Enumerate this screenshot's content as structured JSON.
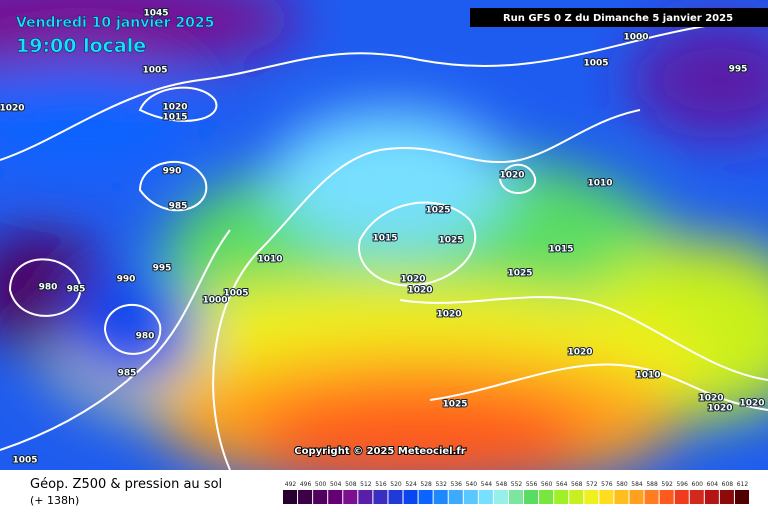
{
  "header": {
    "date": "Vendredi 10 janvier 2025",
    "time": "19:00 locale",
    "run": "Run GFS 0 Z du Dimanche 5 janvier 2025"
  },
  "copyright": "Copyright © 2025 Meteociel.fr",
  "footer": {
    "title": "Géop. Z500 & pression au sol",
    "lead": "(+ 138h)"
  },
  "legend": {
    "values": [
      492,
      496,
      500,
      504,
      508,
      512,
      516,
      520,
      524,
      528,
      532,
      536,
      540,
      544,
      548,
      552,
      556,
      560,
      564,
      568,
      572,
      576,
      580,
      584,
      588,
      592,
      596,
      600,
      604,
      608,
      612
    ],
    "colors": [
      "#28002f",
      "#3c0046",
      "#50005d",
      "#640074",
      "#7a1090",
      "#5a1fa8",
      "#3a2ec0",
      "#1f3ad8",
      "#0a46f0",
      "#0a64ff",
      "#1e88ff",
      "#3caaff",
      "#5ac8ff",
      "#78e0ff",
      "#96f0e8",
      "#7ce6a0",
      "#5adc64",
      "#78e63c",
      "#a0f028",
      "#c8f01e",
      "#f0f01e",
      "#ffdc1e",
      "#ffbe1e",
      "#ffa01e",
      "#ff7d1e",
      "#ff5a1e",
      "#f03c1e",
      "#d2281e",
      "#b41414",
      "#8c0a0a",
      "#500000"
    ]
  },
  "pressure_labels": [
    "1045",
    "1005",
    "1020",
    "1020",
    "1015",
    "990",
    "985",
    "995",
    "990",
    "980",
    "985",
    "1010",
    "1005",
    "1000",
    "980",
    "985",
    "1005",
    "1000",
    "1005",
    "995",
    "1020",
    "1010",
    "1025",
    "1015",
    "1025",
    "1015",
    "1025",
    "1020",
    "1020",
    "1020",
    "1020",
    "1010",
    "1025",
    "1020",
    "1020",
    "1020"
  ]
}
